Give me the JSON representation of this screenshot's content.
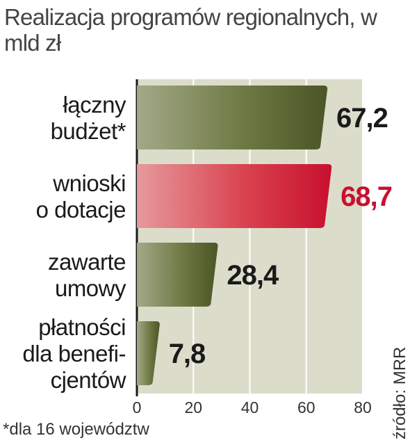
{
  "title": "Realizacja programów regionalnych, w mld zł",
  "footnote": "*dla 16 województw",
  "source": "źródło: MRR",
  "colors": {
    "bar_default": "#5e6a36",
    "bar_highlight": "#c8102e",
    "value_highlight": "#c8102e",
    "plot_bg": "#dcdccb"
  },
  "chart_data": {
    "type": "bar",
    "orientation": "horizontal",
    "title": "Realizacja programów regionalnych, w mld zł",
    "categories": [
      [
        "łączny",
        "budżet*"
      ],
      [
        "wnioski",
        "o dotacje"
      ],
      [
        "zawarte",
        "umowy"
      ],
      [
        "płatności",
        "dla benefi-",
        "cjentów"
      ]
    ],
    "values": [
      67.2,
      68.7,
      28.4,
      7.8
    ],
    "value_labels": [
      "67,2",
      "68,7",
      "28,4",
      "7,8"
    ],
    "highlight_index": 1,
    "xlim": [
      0,
      80
    ],
    "xticks": [
      0,
      20,
      40,
      60,
      80
    ],
    "grid": true
  }
}
